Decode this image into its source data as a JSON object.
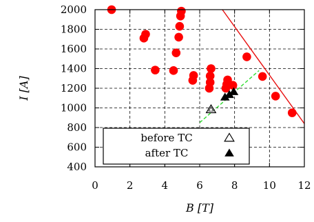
{
  "chart_data": {
    "type": "scatter",
    "xlabel": "B [T]",
    "ylabel": "I [A]",
    "xlim": [
      0,
      12
    ],
    "ylim": [
      400,
      2000
    ],
    "xticks": [
      0,
      2,
      4,
      6,
      8,
      10,
      12
    ],
    "yticks": [
      400,
      600,
      800,
      1000,
      1200,
      1400,
      1600,
      1800,
      2000
    ],
    "grid": true,
    "legend_position": "bottom-center",
    "colors": {
      "points": "#ff0000",
      "line": "#e81010",
      "dashed": "#33dd33",
      "markers": "#000000"
    },
    "series": [
      {
        "style": "red-filled-circles",
        "points": [
          [
            0.95,
            2000
          ],
          [
            2.8,
            1710
          ],
          [
            2.9,
            1750
          ],
          [
            3.45,
            1385
          ],
          [
            4.5,
            1380
          ],
          [
            4.65,
            1560
          ],
          [
            4.8,
            1720
          ],
          [
            4.85,
            1830
          ],
          [
            4.9,
            1935
          ],
          [
            4.95,
            1985
          ],
          [
            5.6,
            1280
          ],
          [
            5.65,
            1330
          ],
          [
            6.55,
            1200
          ],
          [
            6.6,
            1260
          ],
          [
            6.6,
            1325
          ],
          [
            6.65,
            1400
          ],
          [
            7.5,
            1200
          ],
          [
            7.55,
            1240
          ],
          [
            7.6,
            1285
          ],
          [
            7.9,
            1230
          ],
          [
            8.7,
            1520
          ],
          [
            9.6,
            1320
          ],
          [
            10.35,
            1120
          ],
          [
            11.3,
            950
          ]
        ]
      },
      {
        "name": "before TC",
        "style": "open-triangle",
        "points": [
          [
            6.65,
            985
          ]
        ]
      },
      {
        "name": "after TC",
        "style": "filled-triangle",
        "points": [
          [
            7.45,
            1110
          ],
          [
            7.7,
            1135
          ],
          [
            7.95,
            1165
          ]
        ]
      }
    ],
    "lines": [
      {
        "style": "solid-red",
        "points": [
          [
            7.3,
            2000
          ],
          [
            12,
            840
          ]
        ]
      },
      {
        "style": "dashed-green",
        "points": [
          [
            6.0,
            850
          ],
          [
            9.4,
            1380
          ]
        ]
      }
    ],
    "legend": [
      {
        "label": "before TC",
        "marker": "open-triangle"
      },
      {
        "label": "after TC",
        "marker": "filled-triangle"
      }
    ]
  }
}
